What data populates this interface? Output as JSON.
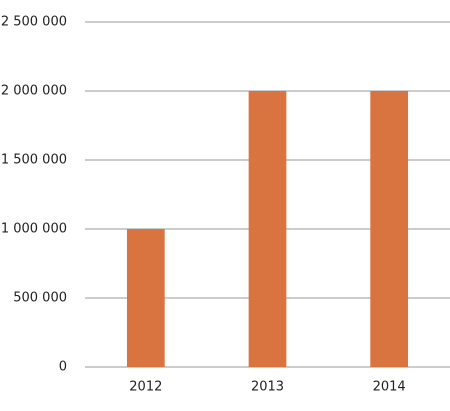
{
  "chart_data": {
    "type": "bar",
    "categories": [
      "2012",
      "2013",
      "2014"
    ],
    "values": [
      1000000,
      2000000,
      2000000
    ],
    "color": "#d97441",
    "ylim": [
      0,
      2500000
    ],
    "yticks": [
      0,
      {
        "value": 500000,
        "label": "500 000"
      },
      {
        "value": 1000000,
        "label": "1 000 000"
      },
      {
        "value": 1500000,
        "label": "1 500 000"
      },
      {
        "value": 2000000,
        "label": "2 000 000"
      },
      {
        "value": 2500000,
        "label": "2 500 000"
      }
    ],
    "grid": true
  }
}
